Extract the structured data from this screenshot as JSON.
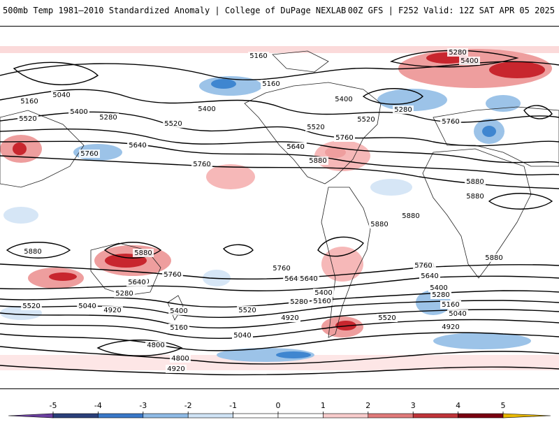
{
  "header": {
    "title": "500mb Temp 1981–2010 Standardized Anomaly | College of DuPage NEXLAB",
    "run_info": "00Z GFS | F252 Valid: 12Z SAT APR 05 2025"
  },
  "map": {
    "contour_labels": [
      {
        "id": "c1",
        "text": "5160"
      },
      {
        "id": "c2",
        "text": "5280"
      },
      {
        "id": "c3",
        "text": "5400"
      },
      {
        "id": "c4",
        "text": "5040"
      },
      {
        "id": "c5",
        "text": "5160"
      },
      {
        "id": "c6",
        "text": "5400"
      },
      {
        "id": "c7",
        "text": "5280"
      },
      {
        "id": "c8",
        "text": "5520"
      },
      {
        "id": "c9",
        "text": "5400"
      },
      {
        "id": "c10",
        "text": "5520"
      },
      {
        "id": "c11",
        "text": "5160"
      },
      {
        "id": "c12",
        "text": "5400"
      },
      {
        "id": "c13",
        "text": "5280"
      },
      {
        "id": "c14",
        "text": "5520"
      },
      {
        "id": "c15",
        "text": "5640"
      },
      {
        "id": "c16",
        "text": "5760"
      },
      {
        "id": "c17",
        "text": "5880"
      },
      {
        "id": "c18",
        "text": "5760"
      },
      {
        "id": "c19",
        "text": "5640"
      },
      {
        "id": "c20",
        "text": "5760"
      },
      {
        "id": "c21",
        "text": "5880"
      },
      {
        "id": "c22",
        "text": "5880"
      },
      {
        "id": "c23",
        "text": "5880"
      },
      {
        "id": "c24",
        "text": "5760"
      },
      {
        "id": "c25",
        "text": "5640"
      },
      {
        "id": "c26",
        "text": "5520"
      },
      {
        "id": "c27",
        "text": "5640"
      },
      {
        "id": "c28",
        "text": "5760"
      },
      {
        "id": "c29",
        "text": "5880"
      },
      {
        "id": "c30",
        "text": "5880"
      },
      {
        "id": "c31",
        "text": "5880"
      },
      {
        "id": "c32",
        "text": "5880"
      },
      {
        "id": "c33",
        "text": "5760"
      },
      {
        "id": "c34",
        "text": "5640"
      },
      {
        "id": "c35",
        "text": "5760"
      },
      {
        "id": "c36",
        "text": "5640"
      },
      {
        "id": "c37",
        "text": "5520"
      },
      {
        "id": "c38",
        "text": "5280"
      },
      {
        "id": "c39",
        "text": "5400"
      },
      {
        "id": "c40",
        "text": "5160"
      },
      {
        "id": "c41",
        "text": "5040"
      },
      {
        "id": "c42",
        "text": "4920"
      },
      {
        "id": "c43",
        "text": "4800"
      },
      {
        "id": "c44",
        "text": "4800"
      },
      {
        "id": "c45",
        "text": "4920"
      },
      {
        "id": "c46",
        "text": "5280"
      },
      {
        "id": "c47",
        "text": "5520"
      },
      {
        "id": "c48",
        "text": "5400"
      },
      {
        "id": "c49",
        "text": "5160"
      },
      {
        "id": "c50",
        "text": "5040"
      },
      {
        "id": "c51",
        "text": "4920"
      },
      {
        "id": "c52",
        "text": "5400"
      },
      {
        "id": "c53",
        "text": "5160"
      },
      {
        "id": "c54",
        "text": "5280"
      },
      {
        "id": "c55",
        "text": "5520"
      },
      {
        "id": "c56",
        "text": "5640"
      },
      {
        "id": "c57",
        "text": "5760"
      },
      {
        "id": "c58",
        "text": "5640"
      },
      {
        "id": "c59",
        "text": "5400"
      },
      {
        "id": "c60",
        "text": "5280"
      },
      {
        "id": "c61",
        "text": "5160"
      },
      {
        "id": "c62",
        "text": "5040"
      },
      {
        "id": "c63",
        "text": "4920"
      },
      {
        "id": "c64",
        "text": "5520"
      },
      {
        "id": "c65",
        "text": "5040"
      },
      {
        "id": "c66",
        "text": "4920"
      },
      {
        "id": "c67",
        "text": "5760"
      },
      {
        "id": "c68",
        "text": "5640"
      }
    ]
  },
  "colorbar": {
    "ticks": [
      "-5",
      "-4",
      "-3",
      "-2",
      "-1",
      "0",
      "1",
      "2",
      "3",
      "4",
      "5"
    ],
    "colors": [
      "#6b3fa0",
      "#2a3f7a",
      "#3a78c8",
      "#8fbbe6",
      "#cfe3f5",
      "#ffffff",
      "#ffffff",
      "#f8cccc",
      "#e07a7a",
      "#c0343a",
      "#7a0010",
      "#e8b800"
    ]
  },
  "colors": {
    "warm_light": "#fbdada",
    "warm_mid": "#ee9e9e",
    "warm_strong": "#c8262e",
    "cool_light": "#d6e6f6",
    "cool_mid": "#9cc3e8",
    "cool_strong": "#3f86d0"
  }
}
